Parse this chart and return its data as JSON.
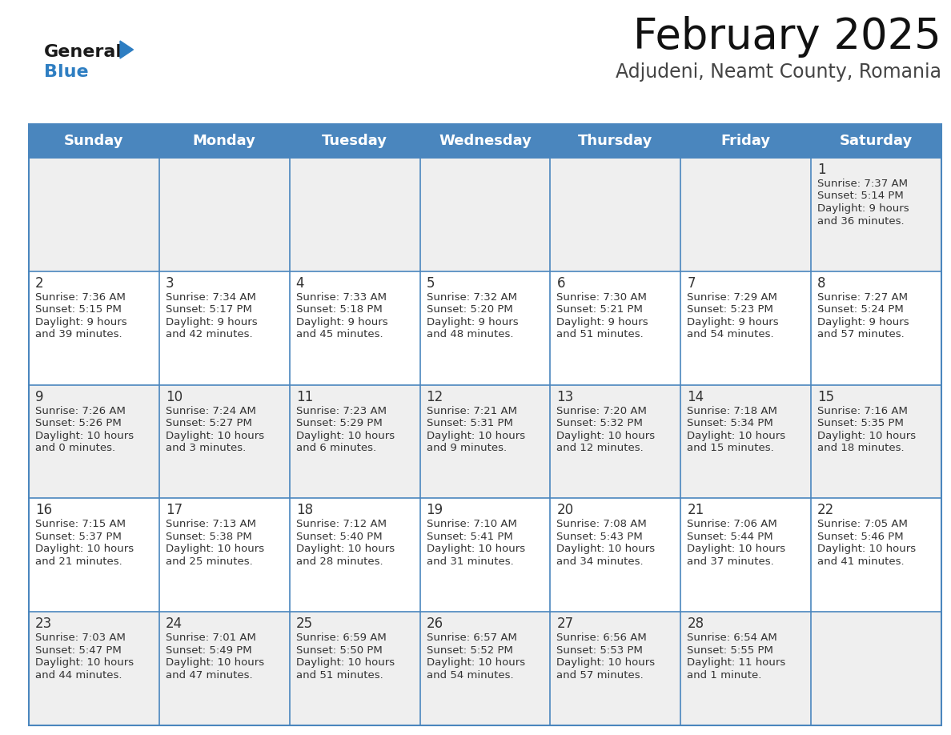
{
  "title": "February 2025",
  "subtitle": "Adjudeni, Neamt County, Romania",
  "header_color": "#4a86be",
  "header_text_color": "#ffffff",
  "cell_bg_even": "#efefef",
  "cell_bg_odd": "#ffffff",
  "border_color": "#4a86be",
  "text_color": "#333333",
  "day_headers": [
    "Sunday",
    "Monday",
    "Tuesday",
    "Wednesday",
    "Thursday",
    "Friday",
    "Saturday"
  ],
  "title_fontsize": 38,
  "subtitle_fontsize": 17,
  "header_fontsize": 13,
  "day_num_fontsize": 12,
  "info_fontsize": 9.5,
  "logo_color1": "#1a1a1a",
  "logo_color2": "#2e7ec2",
  "logo_triangle_color": "#2e7ec2",
  "days": [
    {
      "day": 1,
      "col": 6,
      "row": 0,
      "sunrise": "7:37 AM",
      "sunset": "5:14 PM",
      "daylight_h": "9 hours",
      "daylight_m": "and 36 minutes."
    },
    {
      "day": 2,
      "col": 0,
      "row": 1,
      "sunrise": "7:36 AM",
      "sunset": "5:15 PM",
      "daylight_h": "9 hours",
      "daylight_m": "and 39 minutes."
    },
    {
      "day": 3,
      "col": 1,
      "row": 1,
      "sunrise": "7:34 AM",
      "sunset": "5:17 PM",
      "daylight_h": "9 hours",
      "daylight_m": "and 42 minutes."
    },
    {
      "day": 4,
      "col": 2,
      "row": 1,
      "sunrise": "7:33 AM",
      "sunset": "5:18 PM",
      "daylight_h": "9 hours",
      "daylight_m": "and 45 minutes."
    },
    {
      "day": 5,
      "col": 3,
      "row": 1,
      "sunrise": "7:32 AM",
      "sunset": "5:20 PM",
      "daylight_h": "9 hours",
      "daylight_m": "and 48 minutes."
    },
    {
      "day": 6,
      "col": 4,
      "row": 1,
      "sunrise": "7:30 AM",
      "sunset": "5:21 PM",
      "daylight_h": "9 hours",
      "daylight_m": "and 51 minutes."
    },
    {
      "day": 7,
      "col": 5,
      "row": 1,
      "sunrise": "7:29 AM",
      "sunset": "5:23 PM",
      "daylight_h": "9 hours",
      "daylight_m": "and 54 minutes."
    },
    {
      "day": 8,
      "col": 6,
      "row": 1,
      "sunrise": "7:27 AM",
      "sunset": "5:24 PM",
      "daylight_h": "9 hours",
      "daylight_m": "and 57 minutes."
    },
    {
      "day": 9,
      "col": 0,
      "row": 2,
      "sunrise": "7:26 AM",
      "sunset": "5:26 PM",
      "daylight_h": "10 hours",
      "daylight_m": "and 0 minutes."
    },
    {
      "day": 10,
      "col": 1,
      "row": 2,
      "sunrise": "7:24 AM",
      "sunset": "5:27 PM",
      "daylight_h": "10 hours",
      "daylight_m": "and 3 minutes."
    },
    {
      "day": 11,
      "col": 2,
      "row": 2,
      "sunrise": "7:23 AM",
      "sunset": "5:29 PM",
      "daylight_h": "10 hours",
      "daylight_m": "and 6 minutes."
    },
    {
      "day": 12,
      "col": 3,
      "row": 2,
      "sunrise": "7:21 AM",
      "sunset": "5:31 PM",
      "daylight_h": "10 hours",
      "daylight_m": "and 9 minutes."
    },
    {
      "day": 13,
      "col": 4,
      "row": 2,
      "sunrise": "7:20 AM",
      "sunset": "5:32 PM",
      "daylight_h": "10 hours",
      "daylight_m": "and 12 minutes."
    },
    {
      "day": 14,
      "col": 5,
      "row": 2,
      "sunrise": "7:18 AM",
      "sunset": "5:34 PM",
      "daylight_h": "10 hours",
      "daylight_m": "and 15 minutes."
    },
    {
      "day": 15,
      "col": 6,
      "row": 2,
      "sunrise": "7:16 AM",
      "sunset": "5:35 PM",
      "daylight_h": "10 hours",
      "daylight_m": "and 18 minutes."
    },
    {
      "day": 16,
      "col": 0,
      "row": 3,
      "sunrise": "7:15 AM",
      "sunset": "5:37 PM",
      "daylight_h": "10 hours",
      "daylight_m": "and 21 minutes."
    },
    {
      "day": 17,
      "col": 1,
      "row": 3,
      "sunrise": "7:13 AM",
      "sunset": "5:38 PM",
      "daylight_h": "10 hours",
      "daylight_m": "and 25 minutes."
    },
    {
      "day": 18,
      "col": 2,
      "row": 3,
      "sunrise": "7:12 AM",
      "sunset": "5:40 PM",
      "daylight_h": "10 hours",
      "daylight_m": "and 28 minutes."
    },
    {
      "day": 19,
      "col": 3,
      "row": 3,
      "sunrise": "7:10 AM",
      "sunset": "5:41 PM",
      "daylight_h": "10 hours",
      "daylight_m": "and 31 minutes."
    },
    {
      "day": 20,
      "col": 4,
      "row": 3,
      "sunrise": "7:08 AM",
      "sunset": "5:43 PM",
      "daylight_h": "10 hours",
      "daylight_m": "and 34 minutes."
    },
    {
      "day": 21,
      "col": 5,
      "row": 3,
      "sunrise": "7:06 AM",
      "sunset": "5:44 PM",
      "daylight_h": "10 hours",
      "daylight_m": "and 37 minutes."
    },
    {
      "day": 22,
      "col": 6,
      "row": 3,
      "sunrise": "7:05 AM",
      "sunset": "5:46 PM",
      "daylight_h": "10 hours",
      "daylight_m": "and 41 minutes."
    },
    {
      "day": 23,
      "col": 0,
      "row": 4,
      "sunrise": "7:03 AM",
      "sunset": "5:47 PM",
      "daylight_h": "10 hours",
      "daylight_m": "and 44 minutes."
    },
    {
      "day": 24,
      "col": 1,
      "row": 4,
      "sunrise": "7:01 AM",
      "sunset": "5:49 PM",
      "daylight_h": "10 hours",
      "daylight_m": "and 47 minutes."
    },
    {
      "day": 25,
      "col": 2,
      "row": 4,
      "sunrise": "6:59 AM",
      "sunset": "5:50 PM",
      "daylight_h": "10 hours",
      "daylight_m": "and 51 minutes."
    },
    {
      "day": 26,
      "col": 3,
      "row": 4,
      "sunrise": "6:57 AM",
      "sunset": "5:52 PM",
      "daylight_h": "10 hours",
      "daylight_m": "and 54 minutes."
    },
    {
      "day": 27,
      "col": 4,
      "row": 4,
      "sunrise": "6:56 AM",
      "sunset": "5:53 PM",
      "daylight_h": "10 hours",
      "daylight_m": "and 57 minutes."
    },
    {
      "day": 28,
      "col": 5,
      "row": 4,
      "sunrise": "6:54 AM",
      "sunset": "5:55 PM",
      "daylight_h": "11 hours",
      "daylight_m": "and 1 minute."
    }
  ]
}
